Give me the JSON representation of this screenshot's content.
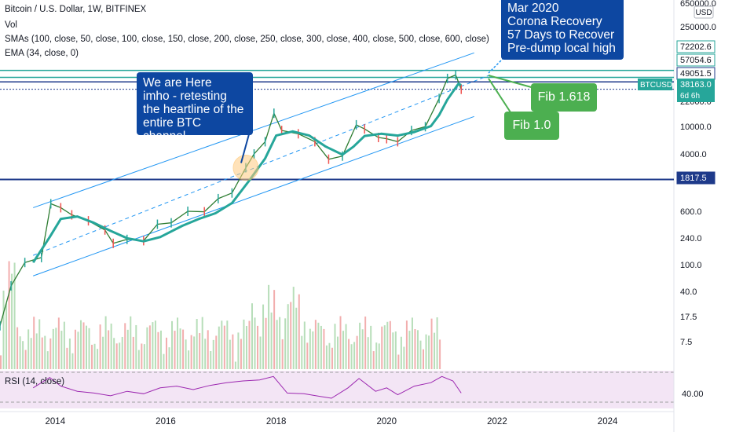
{
  "header": {
    "title": "Bitcoin / U.S. Dollar, 1W, BITFINEX",
    "vol_label": "Vol",
    "sma_label": "SMAs (100, close, 50, close, 100, close, 150, close, 200, close, 250, close, 300, close, 400, close, 500, close, 600, close)",
    "ema_label": "EMA (34, close, 0)"
  },
  "rsi": {
    "label": "RSI (14, close)",
    "value_tick": "40.00"
  },
  "price_axis": {
    "currency": "USD",
    "ticks": [
      "650000.0",
      "250000.0",
      "22000.0",
      "10000.0",
      "4000.0",
      "600.0",
      "240.0",
      "100.0",
      "40.0",
      "17.5",
      "7.5"
    ]
  },
  "tags": [
    {
      "text": "72202.6",
      "color": "#ffffff",
      "text_color": "#131722",
      "border": "#26a69a"
    },
    {
      "text": "57054.6",
      "color": "#ffffff",
      "text_color": "#131722",
      "border": "#26a69a"
    },
    {
      "text": "49051.5",
      "color": "#ffffff",
      "text_color": "#131722",
      "border": "#1e3a8a"
    },
    {
      "text": "1817.5",
      "color": "#1e3a8a",
      "text_color": "#ffffff",
      "border": "#1e3a8a"
    }
  ],
  "symbol_tag": {
    "symbol": "BTCUSD",
    "price": "38163.0",
    "countdown": "6d 6h",
    "color": "#26a69a"
  },
  "annotations": {
    "here": [
      "We are Here",
      "imho - retesting",
      "the heartline of the",
      "entire BTC channel"
    ],
    "corona": [
      "Mar 2020",
      "Corona Recovery",
      "57 Days to Recover",
      "Pre-dump local high"
    ],
    "fib1618": "Fib 1.618",
    "fib10": "Fib 1.0"
  },
  "colors": {
    "annotation_blue": "#0d47a1",
    "annotation_green": "#4caf50",
    "ema": "#26a69a",
    "channel": "#2196f3",
    "level": "#1e3a8a",
    "rsi": "#9c27b0",
    "rsi_bg": "#f3e5f5"
  },
  "chart_data": {
    "type": "line",
    "title": "Bitcoin / U.S. Dollar, 1W, BITFINEX",
    "x_ticks": [
      "2014",
      "2016",
      "2018",
      "2020",
      "2022",
      "2024"
    ],
    "xlim": [
      2013.0,
      2025.2
    ],
    "scale": "log",
    "ylim": [
      3.0,
      700000
    ],
    "levels": [
      1817.5,
      49051.5,
      57054.6,
      72202.6
    ],
    "price_series": {
      "name": "BTCUSD",
      "x": [
        2013.0,
        2013.2,
        2013.45,
        2013.75,
        2013.92,
        2014.1,
        2014.3,
        2014.6,
        2014.9,
        2015.05,
        2015.3,
        2015.6,
        2015.85,
        2016.1,
        2016.4,
        2016.7,
        2016.95,
        2017.2,
        2017.45,
        2017.6,
        2017.8,
        2017.96,
        2018.1,
        2018.4,
        2018.7,
        2018.95,
        2019.2,
        2019.45,
        2019.6,
        2019.85,
        2020.0,
        2020.2,
        2020.45,
        2020.7,
        2020.95,
        2021.1,
        2021.25,
        2021.35
      ],
      "y": [
        13,
        50,
        110,
        130,
        800,
        700,
        550,
        450,
        330,
        210,
        240,
        230,
        400,
        420,
        620,
        610,
        950,
        1150,
        2700,
        4300,
        6500,
        17000,
        9500,
        8500,
        6500,
        3600,
        4000,
        11500,
        10000,
        7500,
        7200,
        6500,
        9500,
        10800,
        28000,
        55000,
        62000,
        38163
      ]
    },
    "ema_series": {
      "name": "EMA (34, close, 0)",
      "x": [
        2013.6,
        2013.9,
        2014.1,
        2014.4,
        2014.7,
        2015.0,
        2015.3,
        2015.6,
        2015.9,
        2016.3,
        2016.6,
        2016.9,
        2017.2,
        2017.5,
        2017.8,
        2018.0,
        2018.3,
        2018.6,
        2018.9,
        2019.2,
        2019.4,
        2019.6,
        2019.9,
        2020.2,
        2020.5,
        2020.8,
        2020.95,
        2021.1,
        2021.3,
        2021.35
      ],
      "y": [
        110,
        260,
        480,
        520,
        420,
        320,
        250,
        225,
        260,
        380,
        480,
        580,
        820,
        1700,
        3700,
        8000,
        9200,
        8000,
        5500,
        4200,
        5500,
        7900,
        8500,
        8000,
        9000,
        11000,
        16000,
        27000,
        46000,
        44000
      ]
    },
    "channel": {
      "upper": [
        [
          2013.6,
          700
        ],
        [
          2021.3,
          95000
        ]
      ],
      "mid": [
        [
          2013.6,
          140
        ],
        [
          2021.3,
          50000
        ]
      ],
      "lower": [
        [
          2013.6,
          70
        ],
        [
          2021.3,
          13000
        ]
      ]
    },
    "volume_ticks_note": "",
    "rsi_series": {
      "x": [
        2013.6,
        2013.9,
        2014.1,
        2014.4,
        2014.7,
        2015.0,
        2015.3,
        2015.6,
        2015.9,
        2016.2,
        2016.5,
        2016.8,
        2017.1,
        2017.4,
        2017.7,
        2017.95,
        2018.2,
        2018.5,
        2018.8,
        2019.0,
        2019.3,
        2019.5,
        2019.8,
        2020.0,
        2020.2,
        2020.5,
        2020.8,
        2021.0,
        2021.2,
        2021.35
      ],
      "y": [
        55,
        85,
        60,
        45,
        40,
        32,
        45,
        38,
        55,
        60,
        50,
        62,
        70,
        75,
        78,
        88,
        40,
        38,
        30,
        25,
        55,
        82,
        45,
        55,
        35,
        60,
        70,
        88,
        75,
        40
      ]
    }
  }
}
